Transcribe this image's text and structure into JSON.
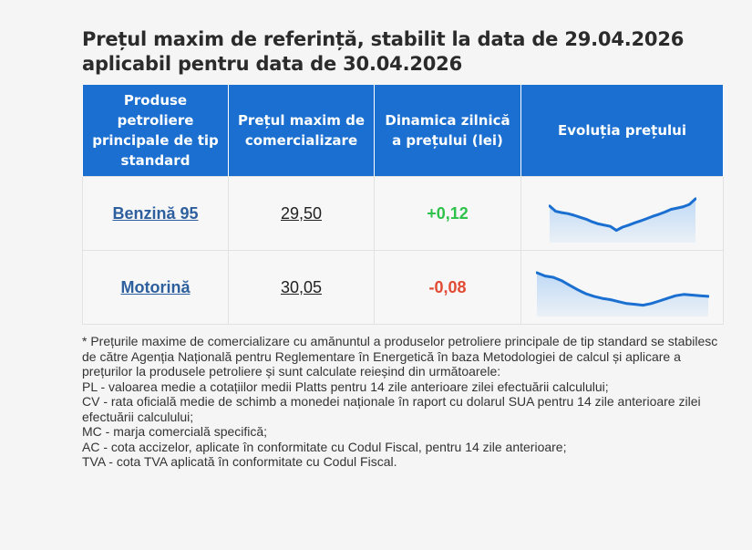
{
  "title": {
    "line1": "Prețul maxim de referință, stabilit la data de 29.04.2026",
    "line2": "aplicabil pentru data de 30.04.2026"
  },
  "table": {
    "headers": [
      "Produse petroliere principale de tip standard",
      "Prețul maxim de comercializare",
      "Dinamica zilnică a prețului (lei)",
      "Evoluția prețului"
    ],
    "rows": [
      {
        "product": "Benzină 95",
        "price": "29,50",
        "change": "+0,12",
        "trend": "up",
        "spark": [
          0.78,
          0.62,
          0.58,
          0.55,
          0.5,
          0.44,
          0.38,
          0.3,
          0.24,
          0.2,
          0.16,
          0.04,
          0.14,
          0.2,
          0.27,
          0.33,
          0.4,
          0.47,
          0.53,
          0.6,
          0.68,
          0.72,
          0.76,
          0.83,
          1.0
        ]
      },
      {
        "product": "Motorină",
        "price": "30,05",
        "change": "-0,08",
        "trend": "down",
        "spark": [
          1.0,
          0.9,
          0.86,
          0.76,
          0.62,
          0.48,
          0.36,
          0.28,
          0.22,
          0.18,
          0.12,
          0.06,
          0.04,
          0.01,
          0.06,
          0.14,
          0.22,
          0.3,
          0.34,
          0.32,
          0.3,
          0.28
        ]
      }
    ],
    "colors": {
      "positive": "#2ec24a",
      "negative": "#e24a33",
      "spark_line": "#1a6fd0",
      "spark_fill": "#b9d6f5"
    }
  },
  "notes": [
    "* Prețurile maxime de comercializare cu amănuntul a produselor petroliere principale de tip standard se stabilesc de către Agenția Națională pentru Reglementare în Energetică în baza Metodologiei de calcul și aplicare a prețurilor la produsele petroliere și sunt calculate reieșind din următoarele:",
    "PL - valoarea medie a cotațiilor medii Platts pentru 14 zile anterioare zilei efectuării calculului;",
    "CV - rata oficială medie de schimb a monedei naționale în raport cu dolarul SUA pentru 14 zile anterioare zilei efectuării calculului;",
    "MC - marja comercială specifică;",
    "AC - cota accizelor, aplicate în conformitate cu Codul Fiscal, pentru 14 zile anterioare;",
    "TVA - cota TVA aplicată în conformitate cu Codul Fiscal."
  ]
}
